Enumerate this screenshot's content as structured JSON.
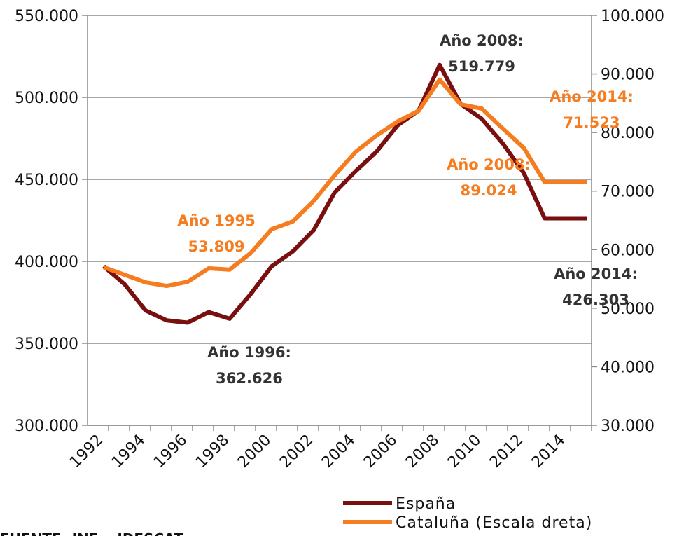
{
  "chart_data": {
    "type": "line",
    "categories": [
      "1992",
      null,
      "1994",
      null,
      "1996",
      null,
      "1998",
      null,
      "2000",
      null,
      "2002",
      null,
      "2004",
      null,
      "2006",
      null,
      "2008",
      null,
      "2010",
      null,
      "2012",
      null,
      "2014",
      null
    ],
    "series": [
      {
        "name": "España",
        "color": "#7a0f0f",
        "values": [
          397000,
          386000,
          370000,
          364000,
          362626,
          369000,
          365000,
          380000,
          397000,
          406000,
          419000,
          442000,
          455000,
          467000,
          483000,
          492000,
          519779,
          496000,
          487000,
          472000,
          454000,
          426303,
          426303,
          426303
        ]
      },
      {
        "name": "Cataluña (Escala dreta)",
        "color": "#f57c1f",
        "axis": "y2",
        "values": [
          57000,
          55700,
          54400,
          53809,
          54500,
          56800,
          56600,
          59400,
          63500,
          64800,
          68300,
          72700,
          76700,
          79500,
          81900,
          83700,
          89024,
          84800,
          84100,
          80700,
          77400,
          71523,
          71523,
          71523
        ]
      }
    ],
    "ylim": [
      300000,
      550000
    ],
    "yticks": [
      {
        "value": 300000,
        "label": "300.000"
      },
      {
        "value": 350000,
        "label": "350.000"
      },
      {
        "value": 400000,
        "label": "400.000"
      },
      {
        "value": 450000,
        "label": "450.000"
      },
      {
        "value": 500000,
        "label": "500.000"
      },
      {
        "value": 550000,
        "label": "550.000"
      }
    ],
    "y2lim": [
      30000,
      100000
    ],
    "y2ticks": [
      {
        "value": 30000,
        "label": "30.000"
      },
      {
        "value": 40000,
        "label": "40.000"
      },
      {
        "value": 50000,
        "label": "50.000"
      },
      {
        "value": 60000,
        "label": "60.000"
      },
      {
        "value": 70000,
        "label": "70.000"
      },
      {
        "value": 80000,
        "label": "80.000"
      },
      {
        "value": 90000,
        "label": "90.000"
      },
      {
        "value": 100000,
        "label": "100.000"
      }
    ],
    "grid": true,
    "annotations": [
      {
        "lines": [
          "Año 2008:",
          "519.779"
        ],
        "color": "#333333"
      },
      {
        "lines": [
          "Año 2014:",
          "71.523"
        ],
        "color": "#f57c1f"
      },
      {
        "lines": [
          "Año 2008:",
          "89.024"
        ],
        "color": "#f57c1f"
      },
      {
        "lines": [
          "Año 1995",
          "53.809"
        ],
        "color": "#f57c1f"
      },
      {
        "lines": [
          "Año 2014:",
          "426.303"
        ],
        "color": "#333333"
      },
      {
        "lines": [
          "Año 1996:",
          "362.626"
        ],
        "color": "#333333"
      }
    ],
    "source": "FUENTE: INE y IDESCAT"
  }
}
